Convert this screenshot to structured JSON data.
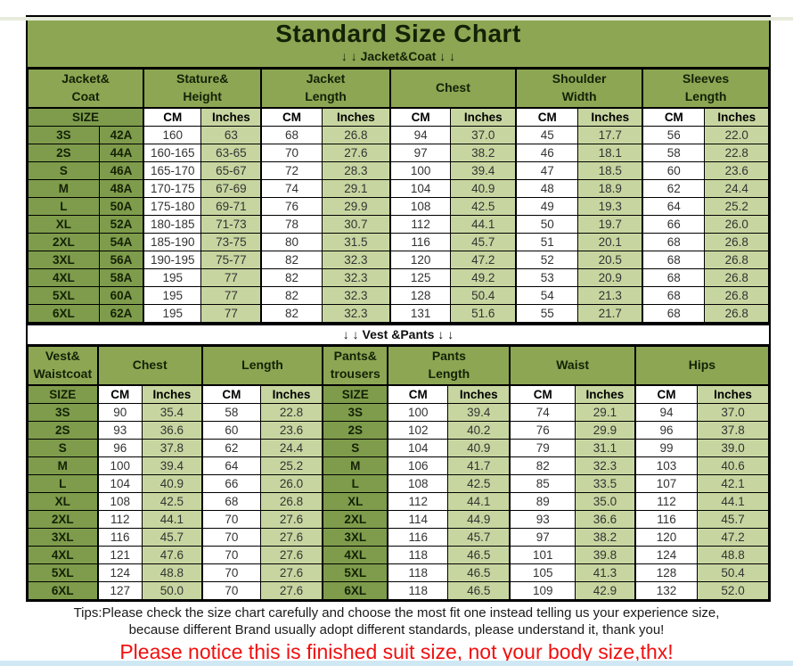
{
  "title": "Standard Size Chart",
  "sections": {
    "jacket_divider": "↓ ↓  Jacket&Coat ↓ ↓",
    "vest_divider": "↓ ↓  Vest &Pants ↓ ↓"
  },
  "colors": {
    "header_green": "#8CA653",
    "size_cell_green": "#7E9C4B",
    "inches_cell_green": "#C7D6A0",
    "cm_cell_white": "#FFFFFF",
    "notice_red": "#F10F0F",
    "bottom_strip_blue": "#CFE8F4"
  },
  "jacket_table": {
    "groups": [
      {
        "label": "Jacket&\nCoat"
      },
      {
        "label": "Stature&\nHeight"
      },
      {
        "label": "Jacket\nLength"
      },
      {
        "label": "Chest"
      },
      {
        "label": "Shoulder\nWidth"
      },
      {
        "label": "Sleeves\nLength"
      }
    ],
    "subheader": [
      "SIZE",
      "CM",
      "Inches",
      "CM",
      "Inches",
      "CM",
      "Inches",
      "CM",
      "Inches",
      "CM",
      "Inches"
    ],
    "rows": [
      [
        "3S",
        "42A",
        "160",
        "63",
        "68",
        "26.8",
        "94",
        "37.0",
        "45",
        "17.7",
        "56",
        "22.0"
      ],
      [
        "2S",
        "44A",
        "160-165",
        "63-65",
        "70",
        "27.6",
        "97",
        "38.2",
        "46",
        "18.1",
        "58",
        "22.8"
      ],
      [
        "S",
        "46A",
        "165-170",
        "65-67",
        "72",
        "28.3",
        "100",
        "39.4",
        "47",
        "18.5",
        "60",
        "23.6"
      ],
      [
        "M",
        "48A",
        "170-175",
        "67-69",
        "74",
        "29.1",
        "104",
        "40.9",
        "48",
        "18.9",
        "62",
        "24.4"
      ],
      [
        "L",
        "50A",
        "175-180",
        "69-71",
        "76",
        "29.9",
        "108",
        "42.5",
        "49",
        "19.3",
        "64",
        "25.2"
      ],
      [
        "XL",
        "52A",
        "180-185",
        "71-73",
        "78",
        "30.7",
        "112",
        "44.1",
        "50",
        "19.7",
        "66",
        "26.0"
      ],
      [
        "2XL",
        "54A",
        "185-190",
        "73-75",
        "80",
        "31.5",
        "116",
        "45.7",
        "51",
        "20.1",
        "68",
        "26.8"
      ],
      [
        "3XL",
        "56A",
        "190-195",
        "75-77",
        "82",
        "32.3",
        "120",
        "47.2",
        "52",
        "20.5",
        "68",
        "26.8"
      ],
      [
        "4XL",
        "58A",
        "195",
        "77",
        "82",
        "32.3",
        "125",
        "49.2",
        "53",
        "20.9",
        "68",
        "26.8"
      ],
      [
        "5XL",
        "60A",
        "195",
        "77",
        "82",
        "32.3",
        "128",
        "50.4",
        "54",
        "21.3",
        "68",
        "26.8"
      ],
      [
        "6XL",
        "62A",
        "195",
        "77",
        "82",
        "32.3",
        "131",
        "51.6",
        "55",
        "21.7",
        "68",
        "26.8"
      ]
    ]
  },
  "vest_table": {
    "groups": [
      {
        "label": "Vest&\nWaistcoat"
      },
      {
        "label": "Chest"
      },
      {
        "label": "Length"
      },
      {
        "label": "Pants&\ntrousers"
      },
      {
        "label": "Pants\nLength"
      },
      {
        "label": "Waist"
      },
      {
        "label": "Hips"
      }
    ],
    "subheader": [
      "SIZE",
      "CM",
      "Inches",
      "CM",
      "Inches",
      "SIZE",
      "CM",
      "Inches",
      "CM",
      "Inches",
      "CM",
      "Inches"
    ],
    "rows": [
      [
        "3S",
        "90",
        "35.4",
        "58",
        "22.8",
        "3S",
        "100",
        "39.4",
        "74",
        "29.1",
        "94",
        "37.0"
      ],
      [
        "2S",
        "93",
        "36.6",
        "60",
        "23.6",
        "2S",
        "102",
        "40.2",
        "76",
        "29.9",
        "96",
        "37.8"
      ],
      [
        "S",
        "96",
        "37.8",
        "62",
        "24.4",
        "S",
        "104",
        "40.9",
        "79",
        "31.1",
        "99",
        "39.0"
      ],
      [
        "M",
        "100",
        "39.4",
        "64",
        "25.2",
        "M",
        "106",
        "41.7",
        "82",
        "32.3",
        "103",
        "40.6"
      ],
      [
        "L",
        "104",
        "40.9",
        "66",
        "26.0",
        "L",
        "108",
        "42.5",
        "85",
        "33.5",
        "107",
        "42.1"
      ],
      [
        "XL",
        "108",
        "42.5",
        "68",
        "26.8",
        "XL",
        "112",
        "44.1",
        "89",
        "35.0",
        "112",
        "44.1"
      ],
      [
        "2XL",
        "112",
        "44.1",
        "70",
        "27.6",
        "2XL",
        "114",
        "44.9",
        "93",
        "36.6",
        "116",
        "45.7"
      ],
      [
        "3XL",
        "116",
        "45.7",
        "70",
        "27.6",
        "3XL",
        "116",
        "45.7",
        "97",
        "38.2",
        "120",
        "47.2"
      ],
      [
        "4XL",
        "121",
        "47.6",
        "70",
        "27.6",
        "4XL",
        "118",
        "46.5",
        "101",
        "39.8",
        "124",
        "48.8"
      ],
      [
        "5XL",
        "124",
        "48.8",
        "70",
        "27.6",
        "5XL",
        "118",
        "46.5",
        "105",
        "41.3",
        "128",
        "50.4"
      ],
      [
        "6XL",
        "127",
        "50.0",
        "70",
        "27.6",
        "6XL",
        "118",
        "46.5",
        "109",
        "42.9",
        "132",
        "52.0"
      ]
    ]
  },
  "footer": {
    "tips_line1": "Tips:Please check the size chart carefully and choose the most fit one instead telling us your experience size,",
    "tips_line2": "because different Brand usually adopt different standards, please understand it, thank you!",
    "notice": "Please notice this is finished suit size, not your body size,thx!"
  }
}
